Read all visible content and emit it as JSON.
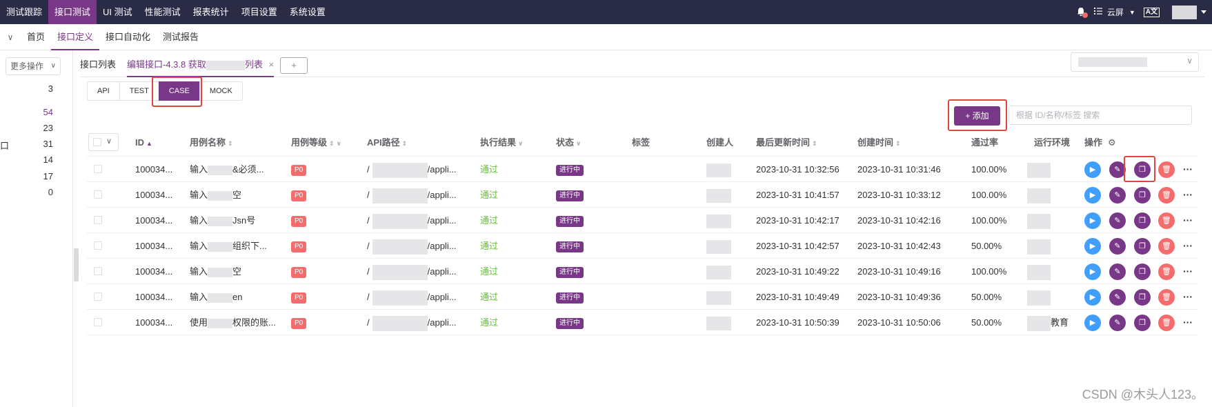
{
  "topnav": {
    "items": [
      "测试跟踪",
      "接口测试",
      "UI 测试",
      "性能测试",
      "报表统计",
      "项目设置",
      "系统设置"
    ],
    "active_index": 1,
    "workspace": "云屏"
  },
  "subnav": {
    "items": [
      "首页",
      "接口定义",
      "接口自动化",
      "测试报告"
    ],
    "active_index": 1
  },
  "leftpanel": {
    "more_ops_label": "更多操作",
    "counts": [
      "3",
      "54",
      "23",
      "31",
      "14",
      "17",
      "0"
    ],
    "row_label": "口"
  },
  "tabs": {
    "list_label": "接口列表",
    "edit_tab_prefix": "编辑接口-4.3.8 获取",
    "edit_tab_suffix": "列表",
    "add_tab": "+"
  },
  "type_seg": {
    "items": [
      "API",
      "TEST",
      "CASE",
      "MOCK"
    ],
    "active_index": 2
  },
  "toolbar": {
    "add_label": "添加",
    "search_placeholder": "根据 ID/名称/标签 搜索"
  },
  "table": {
    "headers": {
      "id": "ID",
      "name": "用例名称",
      "level": "用例等级",
      "api_path": "API路径",
      "result": "执行结果",
      "status": "状态",
      "tags": "标签",
      "creator": "创建人",
      "updated": "最后更新时间",
      "created": "创建时间",
      "pass_rate": "通过率",
      "env": "运行环境",
      "ops": "操作"
    },
    "rows": [
      {
        "id": "100034...",
        "name_a": "输入",
        "name_b": "&必须...",
        "level": "P0",
        "path_a": "/",
        "path_b": "/appli...",
        "result": "通过",
        "status": "进行中",
        "updated": "2023-10-31 10:32:56",
        "created": "2023-10-31 10:31:46",
        "pass_rate": "100.00%",
        "env": ""
      },
      {
        "id": "100034...",
        "name_a": "输入",
        "name_b": "空",
        "level": "P0",
        "path_a": "/",
        "path_b": "/appli...",
        "result": "通过",
        "status": "进行中",
        "updated": "2023-10-31 10:41:57",
        "created": "2023-10-31 10:33:12",
        "pass_rate": "100.00%",
        "env": ""
      },
      {
        "id": "100034...",
        "name_a": "输入",
        "name_b": "Jsn号",
        "level": "P0",
        "path_a": "/",
        "path_b": "/appli...",
        "result": "通过",
        "status": "进行中",
        "updated": "2023-10-31 10:42:17",
        "created": "2023-10-31 10:42:16",
        "pass_rate": "100.00%",
        "env": ""
      },
      {
        "id": "100034...",
        "name_a": "输入",
        "name_b": "组织下...",
        "level": "P0",
        "path_a": "/",
        "path_b": "/appli...",
        "result": "通过",
        "status": "进行中",
        "updated": "2023-10-31 10:42:57",
        "created": "2023-10-31 10:42:43",
        "pass_rate": "50.00%",
        "env": ""
      },
      {
        "id": "100034...",
        "name_a": "输入",
        "name_b": "空",
        "level": "P0",
        "path_a": "/",
        "path_b": "/appli...",
        "result": "通过",
        "status": "进行中",
        "updated": "2023-10-31 10:49:22",
        "created": "2023-10-31 10:49:16",
        "pass_rate": "100.00%",
        "env": ""
      },
      {
        "id": "100034...",
        "name_a": "输入",
        "name_b": "en",
        "level": "P0",
        "path_a": "/",
        "path_b": "/appli...",
        "result": "通过",
        "status": "进行中",
        "updated": "2023-10-31 10:49:49",
        "created": "2023-10-31 10:49:36",
        "pass_rate": "50.00%",
        "env": ""
      },
      {
        "id": "100034...",
        "name_a": "使用",
        "name_b": "权限的账...",
        "level": "P0",
        "path_a": "/",
        "path_b": "/appli...",
        "result": "通过",
        "status": "进行中",
        "updated": "2023-10-31 10:50:39",
        "created": "2023-10-31 10:50:06",
        "pass_rate": "50.00%",
        "env": "教育平..."
      }
    ]
  },
  "watermark": "CSDN @木头人123。",
  "colors": {
    "brand": "#783887",
    "topbar": "#2a2b44",
    "pass": "#67c23a",
    "danger": "#f56c6c",
    "run": "#409eff"
  }
}
